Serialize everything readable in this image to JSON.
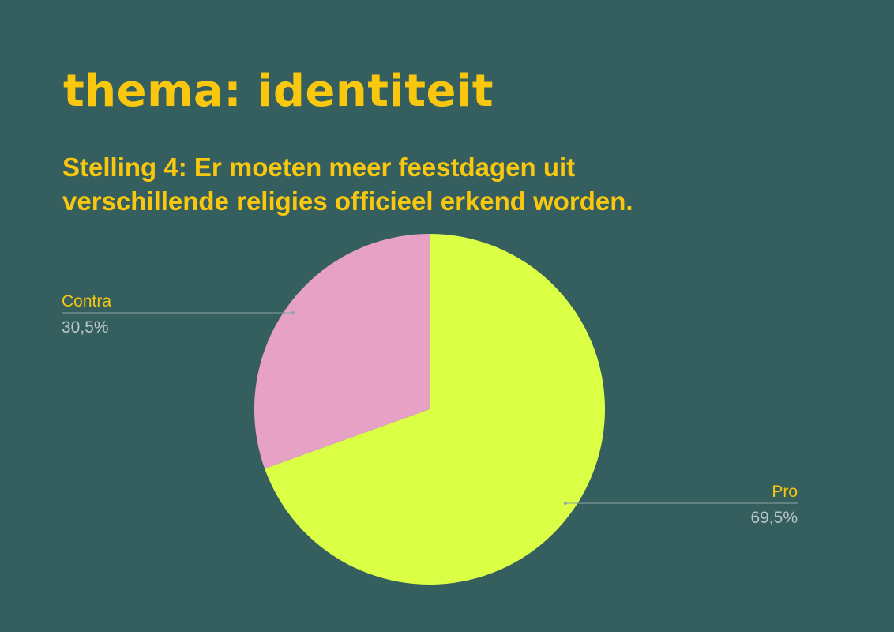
{
  "header": {
    "theme_title": "thema: identiteit",
    "statement_line1": "Stelling 4: Er moeten meer feestdagen uit",
    "statement_line2": "verschillende religies officieel erkend worden."
  },
  "colors": {
    "background": "#355e5e",
    "title": "#f9c80e",
    "pro": "#dbff45",
    "contra": "#e6a1c4",
    "category_label": "#f9c80e",
    "percent_label": "#b8c6c6",
    "leader_line": "#8fa5a5"
  },
  "chart_data": {
    "type": "pie",
    "title": "",
    "slices": [
      {
        "label": "Pro",
        "value": 69.5,
        "percent_label": "69,5%",
        "color": "#dbff45"
      },
      {
        "label": "Contra",
        "value": 30.5,
        "percent_label": "30,5%",
        "color": "#e6a1c4"
      }
    ],
    "start_angle_deg": 0,
    "direction": "clockwise",
    "legend": "none"
  }
}
